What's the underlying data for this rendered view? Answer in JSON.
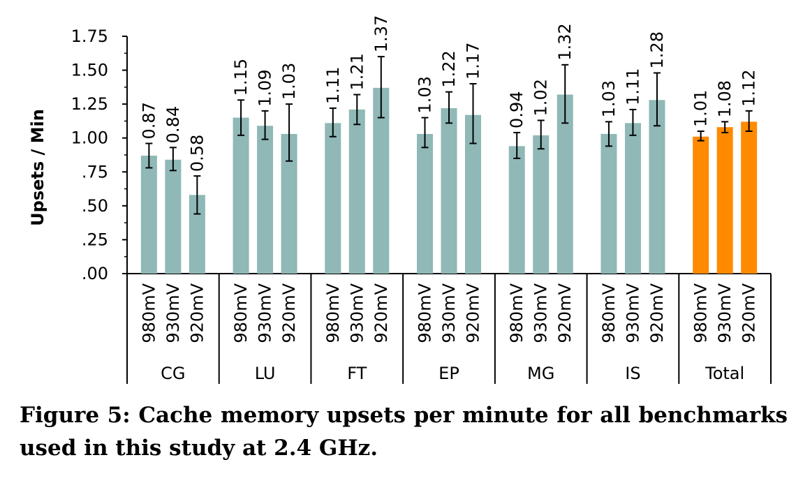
{
  "chart_data": {
    "type": "bar",
    "ylabel": "Upsets / Min",
    "ylim": [
      0,
      1.75
    ],
    "y_ticks": [
      ".00",
      ".25",
      ".50",
      ".75",
      "1.00",
      "1.25",
      "1.50",
      "1.75"
    ],
    "groups": [
      {
        "name": "CG",
        "bars": [
          {
            "label": "980mV",
            "value": 0.87,
            "value_label": "0.87",
            "err_low": 0.78,
            "err_high": 0.96
          },
          {
            "label": "930mV",
            "value": 0.84,
            "value_label": "0.84",
            "err_low": 0.76,
            "err_high": 0.93
          },
          {
            "label": "920mV",
            "value": 0.58,
            "value_label": "0.58",
            "err_low": 0.44,
            "err_high": 0.72
          }
        ]
      },
      {
        "name": "LU",
        "bars": [
          {
            "label": "980mV",
            "value": 1.15,
            "value_label": "1.15",
            "err_low": 1.02,
            "err_high": 1.28
          },
          {
            "label": "930mV",
            "value": 1.09,
            "value_label": "1.09",
            "err_low": 0.99,
            "err_high": 1.2
          },
          {
            "label": "920mV",
            "value": 1.03,
            "value_label": "1.03",
            "err_low": 0.83,
            "err_high": 1.25
          }
        ]
      },
      {
        "name": "FT",
        "bars": [
          {
            "label": "980mV",
            "value": 1.11,
            "value_label": "1.11",
            "err_low": 1.01,
            "err_high": 1.22
          },
          {
            "label": "930mV",
            "value": 1.21,
            "value_label": "1.21",
            "err_low": 1.1,
            "err_high": 1.32
          },
          {
            "label": "920mV",
            "value": 1.37,
            "value_label": "1.37",
            "err_low": 1.15,
            "err_high": 1.6
          }
        ]
      },
      {
        "name": "EP",
        "bars": [
          {
            "label": "980mV",
            "value": 1.03,
            "value_label": "1.03",
            "err_low": 0.93,
            "err_high": 1.15
          },
          {
            "label": "930mV",
            "value": 1.22,
            "value_label": "1.22",
            "err_low": 1.11,
            "err_high": 1.34
          },
          {
            "label": "920mV",
            "value": 1.17,
            "value_label": "1.17",
            "err_low": 0.96,
            "err_high": 1.4
          }
        ]
      },
      {
        "name": "MG",
        "bars": [
          {
            "label": "980mV",
            "value": 0.94,
            "value_label": "0.94",
            "err_low": 0.85,
            "err_high": 1.04
          },
          {
            "label": "930mV",
            "value": 1.02,
            "value_label": "1.02",
            "err_low": 0.92,
            "err_high": 1.13
          },
          {
            "label": "920mV",
            "value": 1.32,
            "value_label": "1.32",
            "err_low": 1.11,
            "err_high": 1.54
          }
        ]
      },
      {
        "name": "IS",
        "bars": [
          {
            "label": "980mV",
            "value": 1.03,
            "value_label": "1.03",
            "err_low": 0.94,
            "err_high": 1.12
          },
          {
            "label": "930mV",
            "value": 1.11,
            "value_label": "1.11",
            "err_low": 1.02,
            "err_high": 1.21
          },
          {
            "label": "920mV",
            "value": 1.28,
            "value_label": "1.28",
            "err_low": 1.09,
            "err_high": 1.48
          }
        ]
      },
      {
        "name": "Total",
        "bars": [
          {
            "label": "980mV",
            "value": 1.01,
            "value_label": "1.01",
            "err_low": 0.98,
            "err_high": 1.05
          },
          {
            "label": "930mV",
            "value": 1.08,
            "value_label": "1.08",
            "err_low": 1.04,
            "err_high": 1.12
          },
          {
            "label": "920mV",
            "value": 1.12,
            "value_label": "1.12",
            "err_low": 1.05,
            "err_high": 1.2
          }
        ]
      }
    ],
    "colors": {
      "default": "#8fb8b6",
      "highlight": "#ff8a00",
      "highlight_group": "Total"
    }
  },
  "caption": "Figure 5: Cache memory upsets per minute for all benchmarks used in this study at 2.4 GHz."
}
